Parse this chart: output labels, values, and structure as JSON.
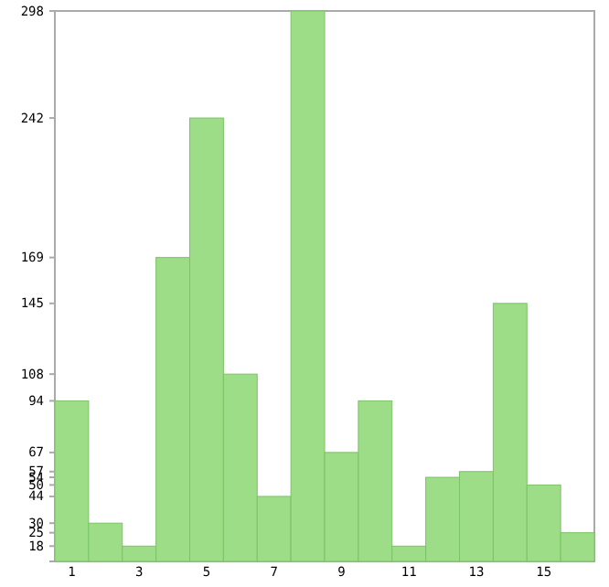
{
  "chart_data": {
    "type": "bar",
    "x": [
      1,
      2,
      3,
      4,
      5,
      6,
      7,
      8,
      9,
      10,
      11,
      12,
      13,
      14,
      15,
      16
    ],
    "values": [
      94,
      30,
      18,
      169,
      242,
      108,
      44,
      298,
      67,
      94,
      18,
      54,
      57,
      145,
      50,
      25
    ],
    "color": "#9ddd88",
    "xlim": [
      0.5,
      16.5
    ],
    "xticks": [
      1,
      3,
      5,
      7,
      9,
      11,
      13,
      15
    ],
    "ylim": [
      10,
      298
    ],
    "yticks": [
      18,
      25,
      30,
      44,
      50,
      54,
      57,
      67,
      94,
      108,
      145,
      169,
      242,
      298
    ],
    "grid": false
  }
}
